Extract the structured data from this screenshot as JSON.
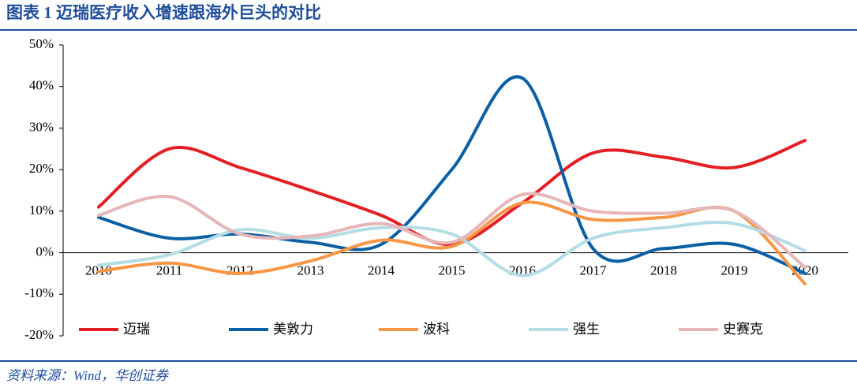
{
  "chart_data": {
    "type": "line",
    "title": "图表 1    迈瑞医疗收入增速跟海外巨头的对比",
    "source": "资料来源：Wind，华创证券",
    "categories": [
      "2010",
      "2011",
      "2012",
      "2013",
      "2014",
      "2015",
      "2016",
      "2017",
      "2018",
      "2019",
      "2020"
    ],
    "series": [
      {
        "name": "迈瑞",
        "color": "#e31e24",
        "values": [
          11,
          25,
          20.5,
          15,
          9,
          2,
          12,
          24,
          23,
          20.5,
          27
        ]
      },
      {
        "name": "美敦力",
        "color": "#0b5fa5",
        "values": [
          8.5,
          3.5,
          4.5,
          2.5,
          2,
          20,
          42,
          1,
          1,
          2,
          -5
        ]
      },
      {
        "name": "波科",
        "color": "#f79646",
        "values": [
          -4.5,
          -2.5,
          -5,
          -2,
          3,
          1.5,
          12,
          8,
          8.5,
          10,
          -7.5
        ]
      },
      {
        "name": "强生",
        "color": "#b3dde5",
        "values": [
          -3,
          -0.5,
          5.5,
          3.5,
          6,
          4.5,
          -5.5,
          3.5,
          6,
          7,
          0.5
        ]
      },
      {
        "name": "史赛克",
        "color": "#e6b6b8",
        "values": [
          9,
          13.5,
          4.5,
          4,
          7,
          2.5,
          14,
          10,
          9.5,
          10,
          -3.5
        ]
      }
    ],
    "ylim": [
      -20,
      50
    ],
    "yticks": [
      {
        "value": -20,
        "label": "-20%"
      },
      {
        "value": -10,
        "label": "-10%"
      },
      {
        "value": 0,
        "label": "0%"
      },
      {
        "value": 10,
        "label": "10%"
      },
      {
        "value": 20,
        "label": "20%"
      },
      {
        "value": 30,
        "label": "30%"
      },
      {
        "value": 40,
        "label": "40%"
      },
      {
        "value": 50,
        "label": "50%"
      }
    ],
    "grid": false,
    "legend": "bottom"
  }
}
